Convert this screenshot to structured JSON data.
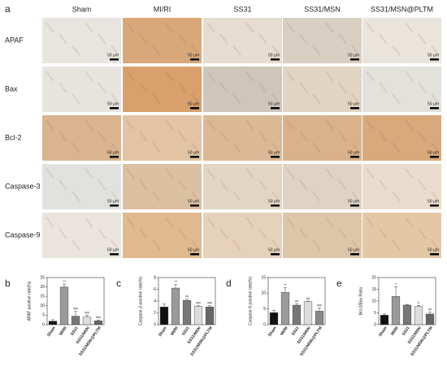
{
  "panel_a": {
    "label": "a",
    "columns": [
      "Sham",
      "MI/RI",
      "SS31",
      "SS31/MSN",
      "SS31/MSN@PLTM"
    ],
    "rows": [
      "APAF",
      "Bax",
      "Bcl-2",
      "Caspase-3",
      "Caspase-9"
    ],
    "scale_bar": "50 μm"
  },
  "chart_data": [
    {
      "type": "bar",
      "panel": "b",
      "ylabel": "APAF positive rate(%)",
      "categories": [
        "Sham",
        "MI/RI",
        "SS31",
        "SS31/MSN",
        "SS31/MSN@PLTM"
      ],
      "values": [
        1.8,
        20,
        4.5,
        4,
        2
      ],
      "errors": [
        0.8,
        1.5,
        2.5,
        1,
        0.5
      ],
      "colors": [
        "#111111",
        "#9a9a9a",
        "#777777",
        "#dddddd",
        "#666666"
      ],
      "annotations": [
        null,
        "***",
        "###",
        "###",
        "###"
      ],
      "ylim": [
        0,
        25
      ],
      "yticks": [
        0,
        5,
        10,
        15,
        20,
        25
      ]
    },
    {
      "type": "bar",
      "panel": "c",
      "ylabel": "Caspase-3 positive rate(%)",
      "categories": [
        "Sham",
        "MI/RI",
        "SS31",
        "SS31/MSN",
        "SS31/MSN@PLTM"
      ],
      "values": [
        3,
        6.2,
        4.1,
        3.1,
        3.0
      ],
      "errors": [
        0.5,
        0.6,
        0.2,
        0.1,
        0.2
      ],
      "colors": [
        "#111111",
        "#9a9a9a",
        "#777777",
        "#dddddd",
        "#666666"
      ],
      "annotations": [
        null,
        "***",
        "##",
        "###",
        "###"
      ],
      "ylim": [
        0,
        8
      ],
      "yticks": [
        0,
        2,
        4,
        6,
        8
      ]
    },
    {
      "type": "bar",
      "panel": "d",
      "ylabel": "Caspase-9 positive rate(%)",
      "categories": [
        "Sham",
        "MI/RI",
        "SS31",
        "SS31/MSN",
        "SS31/MSN@PLTM"
      ],
      "values": [
        3.8,
        10.3,
        6.2,
        7.3,
        4.3
      ],
      "errors": [
        0.8,
        1.5,
        0.5,
        0.2,
        1
      ],
      "colors": [
        "#111111",
        "#9a9a9a",
        "#777777",
        "#dddddd",
        "#888888"
      ],
      "annotations": [
        null,
        "***",
        "##",
        "&&",
        "###"
      ],
      "ylim": [
        0,
        15
      ],
      "yticks": [
        0,
        5,
        10,
        15
      ]
    },
    {
      "type": "bar",
      "panel": "e",
      "ylabel": "Bcl-2/Bax Ratio",
      "categories": [
        "Sham",
        "MI/RI",
        "SS31",
        "SS31/MSN",
        "SS31/MSN@PLTM"
      ],
      "values": [
        4,
        12,
        8.3,
        7.7,
        4.5
      ],
      "errors": [
        0.5,
        4,
        0.3,
        0.5,
        0.8
      ],
      "colors": [
        "#111111",
        "#9a9a9a",
        "#777777",
        "#dddddd",
        "#666666"
      ],
      "annotations": [
        null,
        "**",
        null,
        "#",
        "##"
      ],
      "ylim": [
        0,
        20
      ],
      "yticks": [
        0,
        5,
        10,
        15,
        20
      ]
    }
  ]
}
